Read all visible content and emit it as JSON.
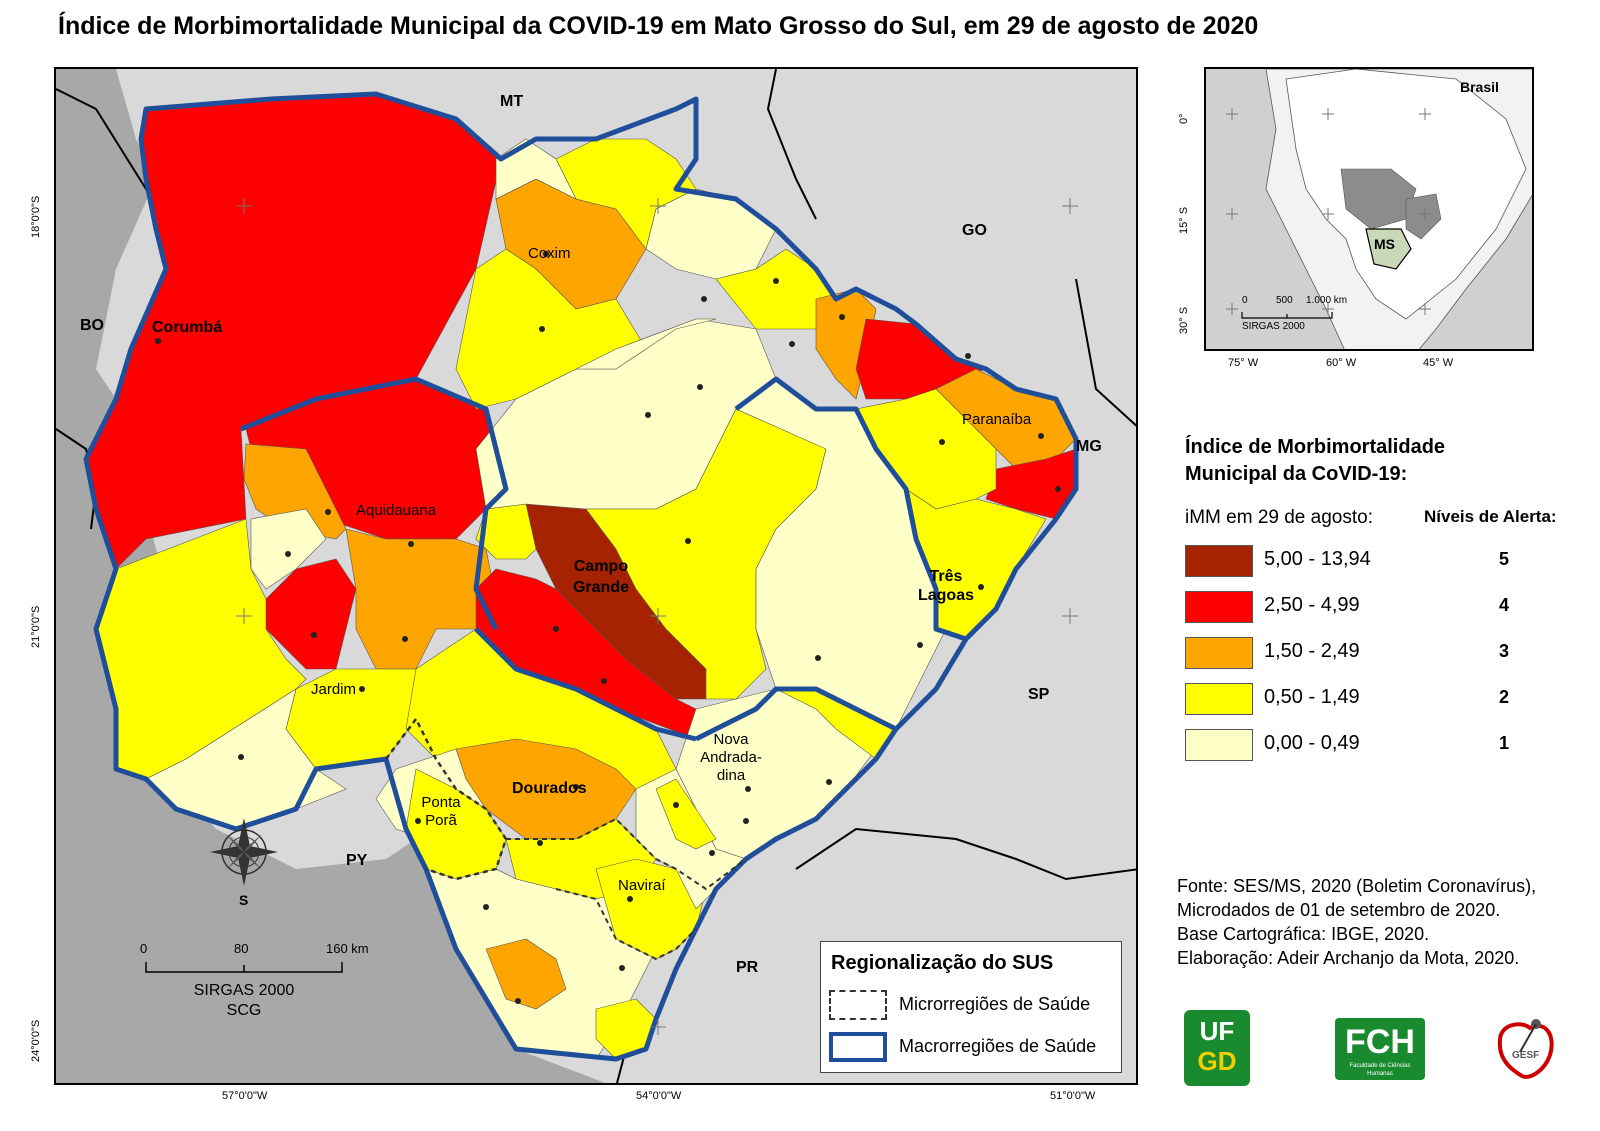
{
  "title": "Índice de Morbimortalidade Municipal da COVID-19 em Mato Grosso do Sul, em 29 de agosto de 2020",
  "map": {
    "coords_lat": [
      "18°0'0\"S",
      "21°0'0\"S",
      "24°0'0\"S"
    ],
    "coords_lon": [
      "57°0'0\"W",
      "54°0'0\"W",
      "51°0'0\"W"
    ],
    "neighbors": {
      "mt": "MT",
      "go": "GO",
      "mg": "MG",
      "sp": "SP",
      "pr": "PR",
      "py": "PY",
      "bo": "BO"
    },
    "cities": {
      "corumba": "Corumbá",
      "coxim": "Coxim",
      "aquidauana": "Aquidauana",
      "campo_grande_1": "Campo",
      "campo_grande_2": "Grande",
      "paranaiba": "Paranaíba",
      "tres_lagoas_1": "Três",
      "tres_lagoas_2": "Lagoas",
      "jardim": "Jardim",
      "dourados": "Dourados",
      "ponta_pora_1": "Ponta",
      "ponta_pora_2": "Porã",
      "nova_andradina_1": "Nova",
      "nova_andradina_2": "Andrada-",
      "nova_andradina_3": "dina",
      "navirai": "Naviraí"
    },
    "compass_label": "S",
    "scale": {
      "t0": "0",
      "t1": "80",
      "t2": "160 km",
      "line1": "SIRGAS 2000",
      "line2": "SCG"
    }
  },
  "inset": {
    "country": "Brasil",
    "state": "MS",
    "lat_labels": [
      "0°",
      "15° S",
      "30° S"
    ],
    "lon_labels": [
      "75° W",
      "60° W",
      "45° W"
    ],
    "scale": {
      "t0": "0",
      "t1": "500",
      "t2": "1.000 km",
      "datum": "SIRGAS 2000"
    }
  },
  "legend": {
    "title_line1": "Índice de Morbimortalidade",
    "title_line2": "Municipal da CoVID-19:",
    "subtitle": "iMM em 29 de agosto:",
    "levels_header": "Níveis de Alerta:",
    "classes": [
      {
        "range": "5,00 - 13,94",
        "level": "5",
        "color": "#a52300"
      },
      {
        "range": "2,50 - 4,99",
        "level": "4",
        "color": "#ff0000"
      },
      {
        "range": "1,50 - 2,49",
        "level": "3",
        "color": "#ffa500"
      },
      {
        "range": "0,50 - 1,49",
        "level": "2",
        "color": "#ffff00"
      },
      {
        "range": "0,00 - 0,49",
        "level": "1",
        "color": "#ffffc8"
      }
    ]
  },
  "regionalization": {
    "title": "Regionalização do SUS",
    "micro": "Microrregiões de Saúde",
    "macro": "Macrorregiões de Saúde",
    "macro_color": "#1f4e9a"
  },
  "source": {
    "line1": "Fonte: SES/MS, 2020 (Boletim Coronavírus),",
    "line2": "Microdados de 01 de setembro de 2020.",
    "line3": "Base Cartográfica: IBGE, 2020.",
    "line4": "Elaboração: Adeir Archanjo da Mota, 2020."
  },
  "logos": {
    "ufgd_1": "UF",
    "ufgd_2": "GD",
    "fch": "FCH",
    "fch_sub": "Faculdade de Ciências Humanas",
    "gesf": "GESF"
  }
}
